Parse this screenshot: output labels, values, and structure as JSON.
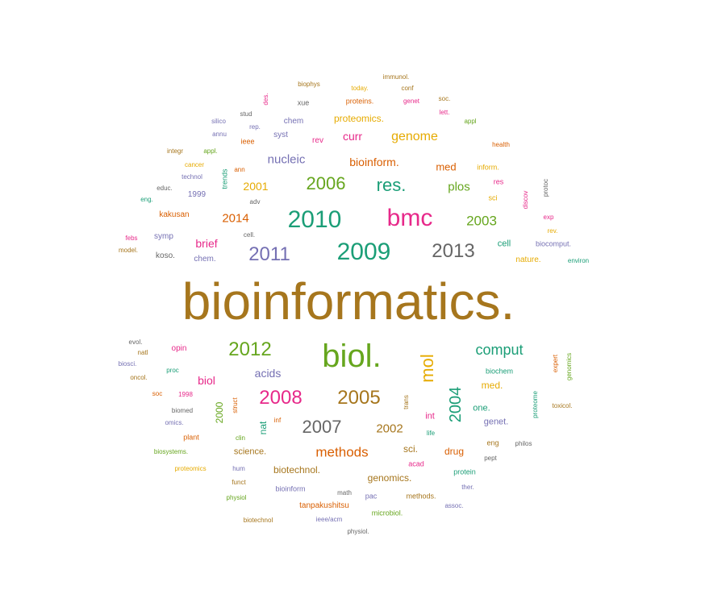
{
  "palette": {
    "teal": "#1b9e77",
    "orange": "#d95f02",
    "purple": "#7570b3",
    "pink": "#e7298a",
    "green": "#66a61e",
    "gold": "#e6ab02",
    "brown": "#a6761d",
    "gray": "#666666"
  },
  "words": [
    {
      "text": "bioinformatics.",
      "color": "brown"
    },
    {
      "text": "biol.",
      "color": "green"
    },
    {
      "text": "bmc",
      "color": "pink"
    },
    {
      "text": "2009",
      "color": "teal"
    },
    {
      "text": "2010",
      "color": "teal"
    },
    {
      "text": "mol",
      "color": "gold"
    },
    {
      "text": "2012",
      "color": "green"
    },
    {
      "text": "2008",
      "color": "pink"
    },
    {
      "text": "2005",
      "color": "brown"
    },
    {
      "text": "2011",
      "color": "purple"
    },
    {
      "text": "2013",
      "color": "gray"
    },
    {
      "text": "res.",
      "color": "teal"
    },
    {
      "text": "2006",
      "color": "green"
    },
    {
      "text": "2007",
      "color": "gray"
    },
    {
      "text": "2004",
      "color": "teal"
    },
    {
      "text": "comput",
      "color": "teal"
    },
    {
      "text": "methods",
      "color": "orange"
    },
    {
      "text": "2003",
      "color": "green"
    },
    {
      "text": "genome",
      "color": "gold"
    },
    {
      "text": "nucleic",
      "color": "purple"
    },
    {
      "text": "2014",
      "color": "orange"
    },
    {
      "text": "plos",
      "color": "green"
    },
    {
      "text": "acids",
      "color": "purple"
    },
    {
      "text": "2002",
      "color": "brown"
    },
    {
      "text": "brief",
      "color": "pink"
    },
    {
      "text": "curr",
      "color": "pink"
    },
    {
      "text": "bioinform.",
      "color": "orange"
    },
    {
      "text": "biol",
      "color": "pink"
    },
    {
      "text": "2001",
      "color": "gold"
    },
    {
      "text": "proteomics.",
      "color": "gold"
    },
    {
      "text": "med",
      "color": "orange"
    },
    {
      "text": "drug",
      "color": "orange"
    },
    {
      "text": "sci.",
      "color": "brown"
    },
    {
      "text": "science.",
      "color": "brown"
    },
    {
      "text": "genomics.",
      "color": "brown"
    },
    {
      "text": "biotechnol.",
      "color": "brown"
    },
    {
      "text": "med.",
      "color": "gold"
    },
    {
      "text": "genet.",
      "color": "purple"
    },
    {
      "text": "one.",
      "color": "teal"
    },
    {
      "text": "int",
      "color": "pink"
    },
    {
      "text": "nat",
      "color": "teal"
    },
    {
      "text": "2000",
      "color": "green"
    },
    {
      "text": "cell",
      "color": "teal"
    },
    {
      "text": "nature.",
      "color": "gold"
    },
    {
      "text": "tanpakushitsu",
      "color": "orange"
    },
    {
      "text": "syst",
      "color": "purple"
    },
    {
      "text": "chem",
      "color": "purple"
    },
    {
      "text": "rev",
      "color": "pink"
    },
    {
      "text": "opin",
      "color": "pink"
    },
    {
      "text": "kakusan",
      "color": "orange"
    },
    {
      "text": "1999",
      "color": "purple"
    },
    {
      "text": "symp",
      "color": "purple"
    },
    {
      "text": "koso.",
      "color": "gray"
    },
    {
      "text": "chem.",
      "color": "purple"
    },
    {
      "text": "ieee",
      "color": "orange"
    },
    {
      "text": "trends",
      "color": "teal"
    },
    {
      "text": "inform.",
      "color": "gold"
    },
    {
      "text": "sci",
      "color": "gold"
    },
    {
      "text": "res",
      "color": "pink"
    },
    {
      "text": "discov",
      "color": "pink"
    },
    {
      "text": "protoc",
      "color": "gray"
    },
    {
      "text": "exp",
      "color": "pink"
    },
    {
      "text": "rev.",
      "color": "gold"
    },
    {
      "text": "biocomput.",
      "color": "purple"
    },
    {
      "text": "environ",
      "color": "teal"
    },
    {
      "text": "biochem",
      "color": "teal"
    },
    {
      "text": "expert",
      "color": "orange"
    },
    {
      "text": "genomics",
      "color": "green"
    },
    {
      "text": "proteome",
      "color": "teal"
    },
    {
      "text": "toxicol.",
      "color": "brown"
    },
    {
      "text": "eng",
      "color": "brown"
    },
    {
      "text": "philos",
      "color": "gray"
    },
    {
      "text": "pept",
      "color": "gray"
    },
    {
      "text": "protein",
      "color": "teal"
    },
    {
      "text": "ther.",
      "color": "purple"
    },
    {
      "text": "assoc.",
      "color": "purple"
    },
    {
      "text": "acad",
      "color": "pink"
    },
    {
      "text": "life",
      "color": "teal"
    },
    {
      "text": "trans",
      "color": "brown"
    },
    {
      "text": "methods.",
      "color": "brown"
    },
    {
      "text": "microbiol.",
      "color": "green"
    },
    {
      "text": "pac",
      "color": "purple"
    },
    {
      "text": "math",
      "color": "gray"
    },
    {
      "text": "ieee/acm",
      "color": "purple"
    },
    {
      "text": "physiol.",
      "color": "gray"
    },
    {
      "text": "bioinform",
      "color": "purple"
    },
    {
      "text": "funct",
      "color": "brown"
    },
    {
      "text": "hum",
      "color": "purple"
    },
    {
      "text": "physiol",
      "color": "green"
    },
    {
      "text": "biotechnol",
      "color": "brown"
    },
    {
      "text": "clin",
      "color": "green"
    },
    {
      "text": "inf",
      "color": "orange"
    },
    {
      "text": "struct",
      "color": "orange"
    },
    {
      "text": "proteomics",
      "color": "gold"
    },
    {
      "text": "biosystems.",
      "color": "green"
    },
    {
      "text": "plant",
      "color": "orange"
    },
    {
      "text": "omics.",
      "color": "purple"
    },
    {
      "text": "biomed",
      "color": "gray"
    },
    {
      "text": "1998",
      "color": "pink"
    },
    {
      "text": "soc",
      "color": "orange"
    },
    {
      "text": "proc",
      "color": "teal"
    },
    {
      "text": "oncol.",
      "color": "brown"
    },
    {
      "text": "biosci.",
      "color": "purple"
    },
    {
      "text": "natl",
      "color": "brown"
    },
    {
      "text": "evol.",
      "color": "gray"
    },
    {
      "text": "model.",
      "color": "brown"
    },
    {
      "text": "febs",
      "color": "pink"
    },
    {
      "text": "cell.",
      "color": "gray"
    },
    {
      "text": "adv",
      "color": "gray"
    },
    {
      "text": "eng.",
      "color": "teal"
    },
    {
      "text": "educ.",
      "color": "gray"
    },
    {
      "text": "technol",
      "color": "purple"
    },
    {
      "text": "cancer",
      "color": "gold"
    },
    {
      "text": "integr",
      "color": "brown"
    },
    {
      "text": "appl.",
      "color": "green"
    },
    {
      "text": "ann",
      "color": "orange"
    },
    {
      "text": "silico",
      "color": "purple"
    },
    {
      "text": "annu",
      "color": "purple"
    },
    {
      "text": "stud",
      "color": "gray"
    },
    {
      "text": "rep.",
      "color": "purple"
    },
    {
      "text": "des.",
      "color": "pink"
    },
    {
      "text": "biophys",
      "color": "brown"
    },
    {
      "text": "xue",
      "color": "gray"
    },
    {
      "text": "today.",
      "color": "gold"
    },
    {
      "text": "proteins.",
      "color": "orange"
    },
    {
      "text": "immunol.",
      "color": "brown"
    },
    {
      "text": "conf",
      "color": "brown"
    },
    {
      "text": "genet",
      "color": "pink"
    },
    {
      "text": "soc.",
      "color": "brown"
    },
    {
      "text": "lett.",
      "color": "pink"
    },
    {
      "text": "appl",
      "color": "green"
    },
    {
      "text": "health",
      "color": "orange"
    }
  ]
}
